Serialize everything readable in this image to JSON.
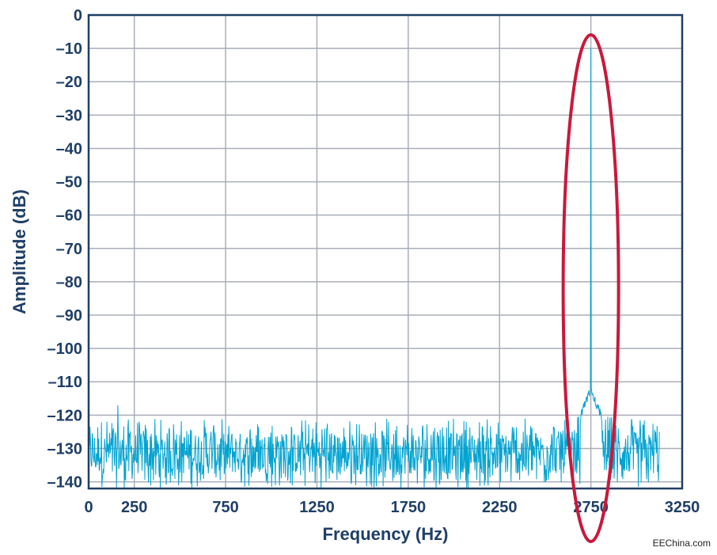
{
  "chart_data": {
    "type": "line",
    "title": "",
    "xlabel": "Frequency (Hz)",
    "ylabel": "Amplitude (dB)",
    "xlim": [
      0,
      3250
    ],
    "ylim": [
      -142,
      0
    ],
    "x_ticks": [
      0,
      250,
      750,
      1250,
      1750,
      2250,
      2750,
      3250
    ],
    "x_tick_labels": [
      "0",
      "250",
      "750",
      "1250",
      "1750",
      "2250",
      "2750",
      "3250"
    ],
    "y_ticks": [
      0,
      -10,
      -20,
      -30,
      -40,
      -50,
      -60,
      -70,
      -80,
      -90,
      -100,
      -110,
      -120,
      -130,
      -140
    ],
    "y_tick_labels": [
      "0",
      "–10",
      "–20",
      "–30",
      "–40",
      "–50",
      "–60",
      "–70",
      "–80",
      "–90",
      "–100",
      "–110",
      "–120",
      "–130",
      "–140"
    ],
    "grid": true,
    "series": [
      {
        "color": "#00a3d1",
        "signal": {
          "x": 2750,
          "y": -10
        },
        "noise_floor": {
          "x_range": [
            0,
            3125
          ],
          "typical_range": [
            -142,
            -121
          ],
          "max": -117
        },
        "noise_spur": {
          "x": 160,
          "y": -117
        }
      }
    ],
    "annotations": [
      {
        "type": "ellipse",
        "center_x": 2750,
        "color": "#c8193c"
      }
    ]
  },
  "watermark": "EEChina.com"
}
